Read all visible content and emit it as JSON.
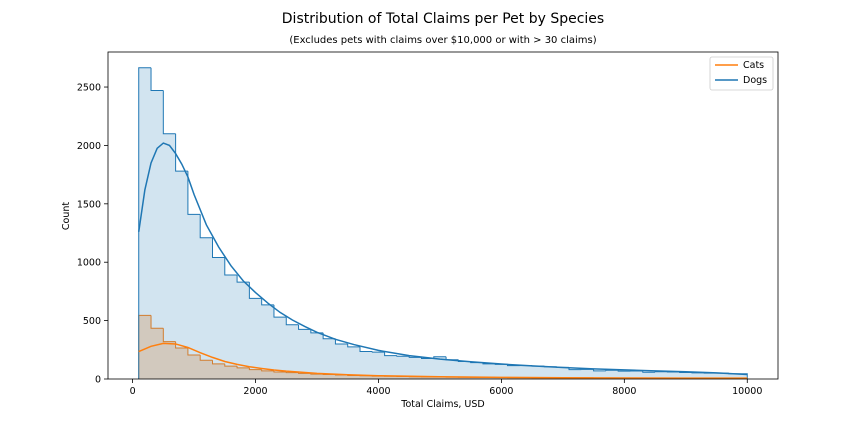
{
  "chart_data": {
    "type": "histogram",
    "title": "Distribution of Total Claims per Pet by Species",
    "subtitle": "(Excludes pets with claims over $10,000 or with > 30 claims)",
    "xlabel": "Total Claims, USD",
    "ylabel": "Count",
    "xlim": [
      -400,
      10500
    ],
    "ylim": [
      0,
      2800
    ],
    "xticks": [
      0,
      2000,
      4000,
      6000,
      8000,
      10000
    ],
    "yticks": [
      0,
      500,
      1000,
      1500,
      2000,
      2500
    ],
    "grid": false,
    "legend_position": "top-right",
    "bins": [
      100,
      300,
      500,
      700,
      900,
      1100,
      1300,
      1500,
      1700,
      1900,
      2100,
      2300,
      2500,
      2700,
      2900,
      3100,
      3300,
      3500,
      3700,
      3900,
      4100,
      4300,
      4500,
      4700,
      4900,
      5100,
      5300,
      5500,
      5700,
      5900,
      6100,
      6300,
      6500,
      6700,
      6900,
      7100,
      7300,
      7500,
      7700,
      7900,
      8100,
      8300,
      8500,
      8700,
      8900,
      9100,
      9300,
      9500,
      9700,
      9900,
      10000
    ],
    "series": [
      {
        "name": "Cats",
        "color": "#ff7f0e",
        "counts": [
          545,
          435,
          320,
          265,
          205,
          160,
          130,
          110,
          95,
          80,
          70,
          60,
          55,
          48,
          42,
          38,
          34,
          30,
          28,
          25,
          23,
          21,
          19,
          18,
          17,
          16,
          15,
          14,
          14,
          13,
          12,
          12,
          11,
          11,
          10,
          10,
          10,
          9,
          9,
          9,
          8,
          8,
          8,
          8,
          8,
          7,
          7,
          7,
          7,
          7
        ],
        "kde": [
          [
            100,
            235
          ],
          [
            300,
            280
          ],
          [
            500,
            305
          ],
          [
            700,
            300
          ],
          [
            900,
            270
          ],
          [
            1100,
            225
          ],
          [
            1300,
            185
          ],
          [
            1500,
            150
          ],
          [
            1700,
            125
          ],
          [
            1900,
            105
          ],
          [
            2100,
            90
          ],
          [
            2300,
            77
          ],
          [
            2500,
            67
          ],
          [
            3000,
            48
          ],
          [
            3500,
            36
          ],
          [
            4000,
            28
          ],
          [
            5000,
            19
          ],
          [
            6000,
            14
          ],
          [
            7000,
            11
          ],
          [
            8000,
            9
          ],
          [
            9000,
            8
          ],
          [
            10000,
            7
          ]
        ]
      },
      {
        "name": "Dogs",
        "color": "#1f77b4",
        "counts": [
          2665,
          2470,
          2100,
          1780,
          1410,
          1210,
          1040,
          890,
          830,
          690,
          635,
          530,
          465,
          425,
          395,
          345,
          300,
          275,
          235,
          230,
          200,
          195,
          185,
          175,
          190,
          165,
          150,
          140,
          130,
          125,
          115,
          115,
          110,
          105,
          100,
          80,
          82,
          70,
          75,
          67,
          68,
          58,
          62,
          60,
          56,
          52,
          50,
          50,
          45,
          45
        ],
        "kde": [
          [
            100,
            1260
          ],
          [
            200,
            1620
          ],
          [
            300,
            1850
          ],
          [
            400,
            1975
          ],
          [
            500,
            2020
          ],
          [
            600,
            2000
          ],
          [
            700,
            1930
          ],
          [
            800,
            1840
          ],
          [
            900,
            1730
          ],
          [
            1000,
            1580
          ],
          [
            1200,
            1320
          ],
          [
            1400,
            1130
          ],
          [
            1600,
            970
          ],
          [
            1800,
            840
          ],
          [
            2000,
            740
          ],
          [
            2200,
            650
          ],
          [
            2400,
            570
          ],
          [
            2600,
            505
          ],
          [
            2800,
            450
          ],
          [
            3000,
            400
          ],
          [
            3300,
            340
          ],
          [
            3600,
            295
          ],
          [
            4000,
            245
          ],
          [
            4500,
            200
          ],
          [
            5000,
            170
          ],
          [
            5500,
            148
          ],
          [
            6000,
            128
          ],
          [
            6500,
            112
          ],
          [
            7000,
            98
          ],
          [
            7500,
            87
          ],
          [
            8000,
            78
          ],
          [
            8500,
            70
          ],
          [
            9000,
            62
          ],
          [
            9500,
            52
          ],
          [
            10000,
            38
          ]
        ]
      }
    ]
  }
}
